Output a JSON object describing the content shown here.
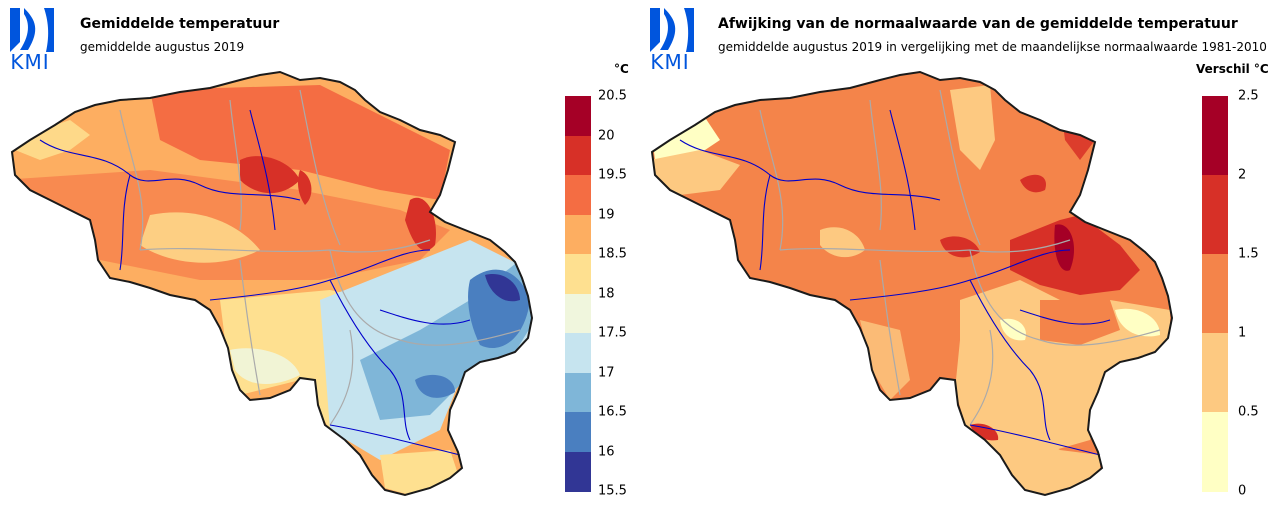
{
  "left": {
    "logo_text": "KMI",
    "title": "Gemiddelde temperatuur",
    "subtitle": "gemiddelde augustus 2019",
    "unit": "°C",
    "legend_ticks": [
      "20.5",
      "20",
      "19.5",
      "19",
      "18.5",
      "18",
      "17.5",
      "17",
      "16.5",
      "16",
      "15.5"
    ],
    "legend_colors": [
      "#a50026",
      "#d73027",
      "#f46d43",
      "#fdae61",
      "#fee090",
      "#f0f6dd",
      "#c6e4ef",
      "#7fb6d8",
      "#4a7fc0",
      "#313695"
    ]
  },
  "right": {
    "logo_text": "KMI",
    "title": "Afwijking van de normaalwaarde van de gemiddelde temperatuur",
    "subtitle": "gemiddelde augustus 2019 in vergelijking met de maandelijkse normaalwaarde 1981-2010",
    "unit": "Verschil °C",
    "legend_ticks": [
      "2.5",
      "2",
      "1.5",
      "1",
      "0.5",
      "0"
    ],
    "legend_colors": [
      "#a50026",
      "#d73027",
      "#f4844a",
      "#fdc981",
      "#ffffc4"
    ]
  },
  "colors": {
    "kmi_blue": "#0055dd",
    "border": "#1a1a1a",
    "rivers": "#0000cc",
    "provinces": "#aaaaaa"
  }
}
